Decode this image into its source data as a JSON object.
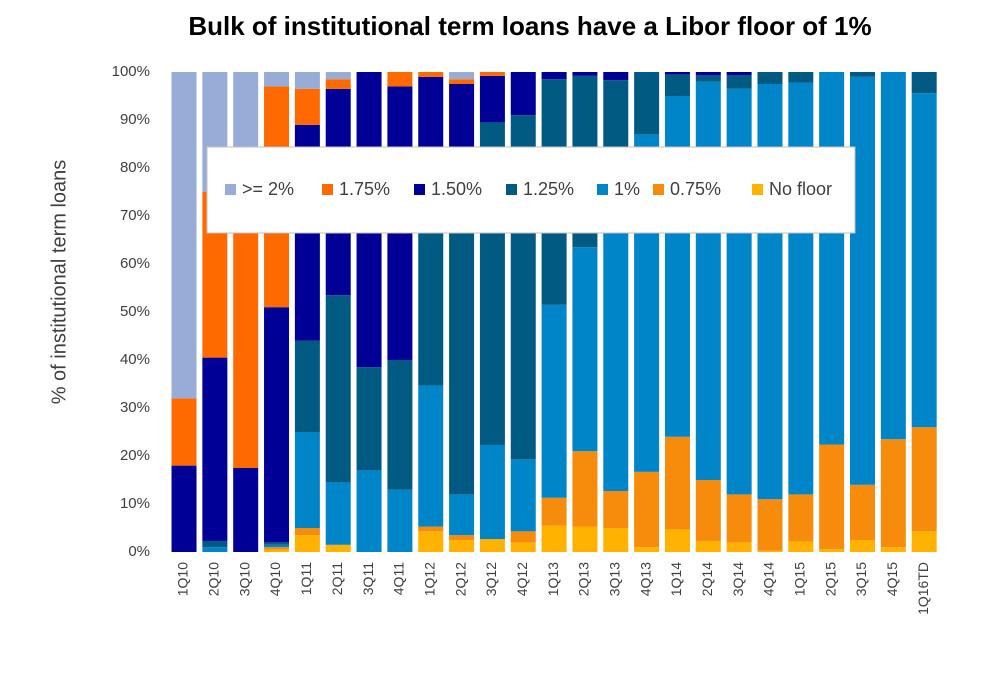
{
  "chart_data": {
    "type": "stacked-bar",
    "title": "Bulk of institutional term loans have a Libor floor of 1%",
    "y_label": "% of institutional term loans",
    "categories": [
      "1Q10",
      "2Q10",
      "3Q10",
      "4Q10",
      "1Q11",
      "2Q11",
      "3Q11",
      "4Q11",
      "1Q12",
      "2Q12",
      "3Q12",
      "4Q12",
      "1Q13",
      "2Q13",
      "3Q13",
      "4Q13",
      "1Q14",
      "2Q14",
      "3Q14",
      "4Q14",
      "1Q15",
      "2Q15",
      "3Q15",
      "4Q15",
      "1Q16TD"
    ],
    "series": [
      {
        "name": "No floor",
        "color": "#ffb300",
        "values": [
          0,
          0,
          0,
          0.5,
          3.5,
          1.5,
          0,
          0,
          4.3,
          2.5,
          2.7,
          2,
          5.5,
          5.3,
          5,
          1,
          4.7,
          2.3,
          2,
          0.3,
          2.2,
          0.6,
          2.5,
          1,
          4.3
        ]
      },
      {
        "name": "0.75%",
        "color": "#f68b0c",
        "values": [
          0,
          0,
          0,
          0.5,
          1.5,
          0,
          0,
          0,
          1,
          1,
          0,
          2.3,
          5.8,
          15.7,
          7.7,
          15.7,
          19.3,
          12.7,
          10,
          10.7,
          9.8,
          21.8,
          11.5,
          22.5,
          21.7
        ]
      },
      {
        "name": "1%",
        "color": "#0085c8",
        "values": [
          0,
          1,
          0,
          0.5,
          20,
          13,
          17,
          13,
          29.4,
          8.5,
          19.6,
          15,
          40.2,
          42.5,
          62.3,
          70.3,
          71,
          83,
          84.5,
          86.5,
          85.8,
          77.6,
          85,
          76.5,
          69.6
        ]
      },
      {
        "name": "1.25%",
        "color": "#005a82",
        "values": [
          0,
          1.3,
          0,
          0.5,
          19,
          39,
          21.5,
          27,
          40.3,
          68,
          67.2,
          71.7,
          47,
          35.7,
          23.3,
          13,
          4.5,
          1.3,
          2.8,
          2.5,
          2.2,
          0,
          1,
          0,
          4.4
        ]
      },
      {
        "name": "1.50%",
        "color": "#000096",
        "values": [
          18,
          38.2,
          17.5,
          49,
          45,
          43,
          61.5,
          57,
          24,
          17.5,
          9.7,
          9,
          1.5,
          0.8,
          1.7,
          0,
          0.5,
          0.7,
          0.7,
          0,
          0,
          0,
          0,
          0,
          0
        ]
      },
      {
        "name": "1.75%",
        "color": "#ff6a00",
        "values": [
          14,
          34.5,
          57.5,
          46,
          7.5,
          2,
          0,
          3,
          1,
          1,
          0.8,
          0,
          0,
          0,
          0,
          0,
          0,
          0,
          0,
          0,
          0,
          0,
          0,
          0,
          0
        ]
      },
      {
        "name": ">= 2%",
        "color": "#98acd8",
        "values": [
          68,
          25,
          25,
          3,
          3.5,
          1.5,
          0,
          0,
          0,
          1.5,
          0,
          0,
          0,
          0,
          0,
          0,
          0,
          0,
          0,
          0,
          0,
          0,
          0,
          0,
          0
        ]
      }
    ],
    "ylim": [
      0,
      100
    ],
    "yticks": [
      {
        "value": 0,
        "label": "0%"
      },
      {
        "value": 10,
        "label": "10%"
      },
      {
        "value": 20,
        "label": "20%"
      },
      {
        "value": 30,
        "label": "30%"
      },
      {
        "value": 40,
        "label": "40%"
      },
      {
        "value": 50,
        "label": "50%"
      },
      {
        "value": 60,
        "label": "60%"
      },
      {
        "value": 70,
        "label": "70%"
      },
      {
        "value": 80,
        "label": "80%"
      },
      {
        "value": 90,
        "label": "90%"
      },
      {
        "value": 100,
        "label": "100%"
      }
    ]
  }
}
